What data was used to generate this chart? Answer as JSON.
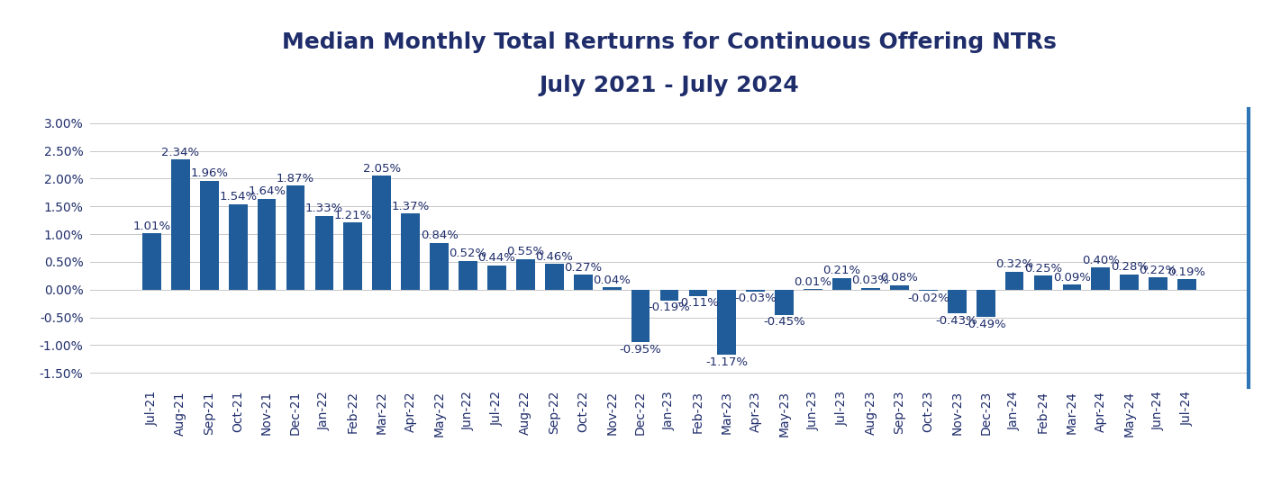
{
  "title_line1": "Median Monthly Total Rerturns for Continuous Offering NTRs",
  "title_line2": "July 2021 - July 2024",
  "categories": [
    "Jul-21",
    "Aug-21",
    "Sep-21",
    "Oct-21",
    "Nov-21",
    "Dec-21",
    "Jan-22",
    "Feb-22",
    "Mar-22",
    "Apr-22",
    "May-22",
    "Jun-22",
    "Jul-22",
    "Aug-22",
    "Sep-22",
    "Oct-22",
    "Nov-22",
    "Dec-22",
    "Jan-23",
    "Feb-23",
    "Mar-23",
    "Apr-23",
    "May-23",
    "Jun-23",
    "Jul-23",
    "Aug-23",
    "Sep-23",
    "Oct-23",
    "Nov-23",
    "Dec-23",
    "Jan-24",
    "Feb-24",
    "Mar-24",
    "Apr-24",
    "May-24",
    "Jun-24",
    "Jul-24"
  ],
  "values": [
    1.01,
    2.34,
    1.96,
    1.54,
    1.64,
    1.87,
    1.33,
    1.21,
    2.05,
    1.37,
    0.84,
    0.52,
    0.44,
    0.55,
    0.46,
    0.27,
    0.04,
    -0.95,
    -0.19,
    -0.11,
    -1.17,
    -0.03,
    -0.45,
    0.01,
    0.21,
    0.03,
    0.08,
    -0.02,
    -0.43,
    -0.49,
    0.32,
    0.25,
    0.09,
    0.4,
    0.28,
    0.22,
    0.19
  ],
  "bar_color": "#1F5C99",
  "background_color": "#FFFFFF",
  "grid_color": "#C8C8C8",
  "title_color": "#1F2D6B",
  "label_color": "#1F2D6B",
  "tick_color": "#1F2D6B",
  "right_spine_color": "#2E75B6",
  "ylim": [
    -1.75,
    3.25
  ],
  "yticks": [
    -1.5,
    -1.0,
    -0.5,
    0.0,
    0.5,
    1.0,
    1.5,
    2.0,
    2.5,
    3.0
  ],
  "title_fontsize": 18,
  "label_fontsize": 9.5,
  "tick_fontsize": 10,
  "bar_width": 0.65
}
